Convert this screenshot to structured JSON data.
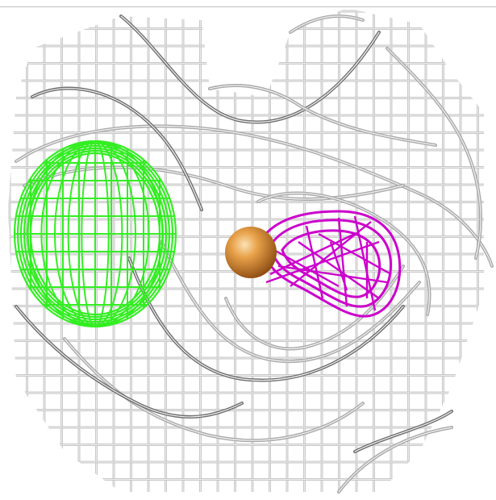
{
  "scene": {
    "description_labels": [],
    "colors": {
      "background": "#ffffff",
      "mesh_light": "#c8c8c8",
      "mesh_mid": "#a9a9a9",
      "mesh_dark": "#6e6e6e",
      "green_mesh": "#33ee22",
      "magenta_mesh": "#cc00cc",
      "sphere_base": "#d98a2a",
      "sphere_highlight": "#f7c27a"
    },
    "objects": [
      {
        "name": "protein-surface-mesh",
        "color": "gray"
      },
      {
        "name": "green-density-mesh",
        "color": "green"
      },
      {
        "name": "magenta-density-mesh",
        "color": "magenta"
      },
      {
        "name": "metal-ion-sphere",
        "color": "orange"
      }
    ]
  }
}
